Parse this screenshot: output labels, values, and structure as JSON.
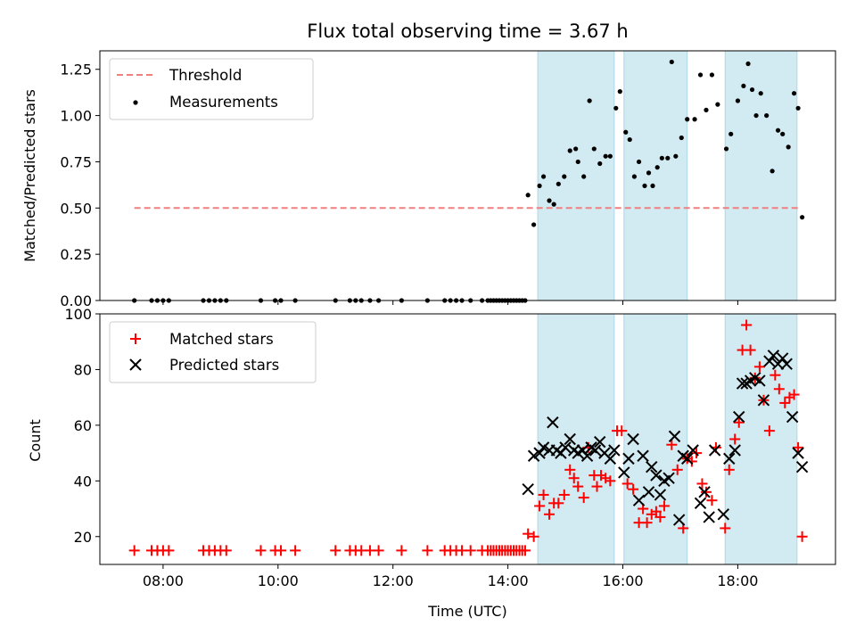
{
  "chart_data": [
    {
      "type": "scatter",
      "title": "Flux total observing time = 3.67 h",
      "xlabel": "",
      "ylabel": "Matched/Predicted stars",
      "xlim": [
        6.9,
        19.7
      ],
      "ylim": [
        0.0,
        1.35
      ],
      "yticks": [
        0.0,
        0.25,
        0.5,
        0.75,
        1.0,
        1.25
      ],
      "ytick_labels": [
        "0.00",
        "0.25",
        "0.50",
        "0.75",
        "1.00",
        "1.25"
      ],
      "xticks": [
        8,
        10,
        12,
        14,
        16,
        18
      ],
      "shaded_intervals": [
        [
          14.52,
          15.85
        ],
        [
          16.02,
          17.12
        ],
        [
          17.78,
          19.03
        ]
      ],
      "shade_color": "#add8e6",
      "threshold": {
        "name": "Threshold",
        "y": 0.5,
        "x_range": [
          7.5,
          19.05
        ],
        "color": "#f08080"
      },
      "legend": [
        {
          "label": "Threshold",
          "marker": "dashed-line",
          "color": "#f08080"
        },
        {
          "label": "Measurements",
          "marker": "dot",
          "color": "#000000"
        }
      ],
      "legend_position": "top-left",
      "series": [
        {
          "name": "Measurements",
          "color": "#000000",
          "points": [
            [
              7.5,
              0
            ],
            [
              7.8,
              0
            ],
            [
              7.9,
              0
            ],
            [
              8.0,
              0
            ],
            [
              8.1,
              0
            ],
            [
              8.7,
              0
            ],
            [
              8.8,
              0
            ],
            [
              8.9,
              0
            ],
            [
              9.0,
              0
            ],
            [
              9.1,
              0
            ],
            [
              9.7,
              0
            ],
            [
              9.95,
              0
            ],
            [
              10.05,
              0
            ],
            [
              10.3,
              0
            ],
            [
              11.0,
              0
            ],
            [
              11.25,
              0
            ],
            [
              11.35,
              0
            ],
            [
              11.45,
              0
            ],
            [
              11.6,
              0
            ],
            [
              11.75,
              0
            ],
            [
              12.15,
              0
            ],
            [
              12.6,
              0
            ],
            [
              12.9,
              0
            ],
            [
              13.0,
              0
            ],
            [
              13.1,
              0
            ],
            [
              13.2,
              0
            ],
            [
              13.35,
              0
            ],
            [
              13.55,
              0
            ],
            [
              13.65,
              0
            ],
            [
              13.7,
              0
            ],
            [
              13.75,
              0
            ],
            [
              13.8,
              0
            ],
            [
              13.85,
              0
            ],
            [
              13.9,
              0
            ],
            [
              13.95,
              0
            ],
            [
              14.0,
              0
            ],
            [
              14.05,
              0
            ],
            [
              14.1,
              0
            ],
            [
              14.15,
              0
            ],
            [
              14.2,
              0
            ],
            [
              14.25,
              0
            ],
            [
              14.3,
              0
            ],
            [
              14.35,
              0.57
            ],
            [
              14.45,
              0.41
            ],
            [
              14.55,
              0.62
            ],
            [
              14.62,
              0.67
            ],
            [
              14.72,
              0.54
            ],
            [
              14.8,
              0.52
            ],
            [
              14.88,
              0.63
            ],
            [
              14.98,
              0.67
            ],
            [
              15.08,
              0.81
            ],
            [
              15.18,
              0.82
            ],
            [
              15.22,
              0.75
            ],
            [
              15.32,
              0.67
            ],
            [
              15.42,
              1.08
            ],
            [
              15.5,
              0.82
            ],
            [
              15.6,
              0.74
            ],
            [
              15.7,
              0.78
            ],
            [
              15.78,
              0.78
            ],
            [
              15.88,
              1.04
            ],
            [
              15.95,
              1.13
            ],
            [
              16.05,
              0.91
            ],
            [
              16.12,
              0.87
            ],
            [
              16.2,
              0.67
            ],
            [
              16.28,
              0.75
            ],
            [
              16.38,
              0.62
            ],
            [
              16.45,
              0.69
            ],
            [
              16.52,
              0.62
            ],
            [
              16.6,
              0.72
            ],
            [
              16.68,
              0.77
            ],
            [
              16.78,
              0.77
            ],
            [
              16.85,
              1.29
            ],
            [
              16.92,
              0.78
            ],
            [
              17.02,
              0.88
            ],
            [
              17.12,
              0.98
            ],
            [
              17.25,
              0.98
            ],
            [
              17.35,
              1.22
            ],
            [
              17.45,
              1.03
            ],
            [
              17.55,
              1.22
            ],
            [
              17.65,
              1.06
            ],
            [
              17.8,
              0.82
            ],
            [
              17.88,
              0.9
            ],
            [
              18.0,
              1.08
            ],
            [
              18.1,
              1.16
            ],
            [
              18.18,
              1.28
            ],
            [
              18.25,
              1.14
            ],
            [
              18.32,
              1.0
            ],
            [
              18.4,
              1.12
            ],
            [
              18.5,
              1.0
            ],
            [
              18.6,
              0.7
            ],
            [
              18.7,
              0.92
            ],
            [
              18.78,
              0.9
            ],
            [
              18.88,
              0.83
            ],
            [
              18.98,
              1.12
            ],
            [
              19.05,
              1.04
            ],
            [
              19.12,
              0.45
            ]
          ]
        }
      ]
    },
    {
      "type": "scatter",
      "title": "",
      "xlabel": "Time (UTC)",
      "ylabel": "Count",
      "xlim": [
        6.9,
        19.7
      ],
      "ylim": [
        10,
        100
      ],
      "yticks": [
        20,
        40,
        60,
        80,
        100
      ],
      "ytick_labels": [
        "20",
        "40",
        "60",
        "80",
        "100"
      ],
      "xticks": [
        8,
        10,
        12,
        14,
        16,
        18
      ],
      "xtick_labels": [
        "08:00",
        "10:00",
        "12:00",
        "14:00",
        "16:00",
        "18:00"
      ],
      "shaded_intervals": [
        [
          14.52,
          15.85
        ],
        [
          16.02,
          17.12
        ],
        [
          17.78,
          19.03
        ]
      ],
      "shade_color": "#add8e6",
      "legend": [
        {
          "label": "Matched stars",
          "marker": "plus",
          "color": "#ff0000"
        },
        {
          "label": "Predicted stars",
          "marker": "x",
          "color": "#000000"
        }
      ],
      "legend_position": "top-left",
      "series": [
        {
          "name": "Matched stars",
          "marker": "plus",
          "color": "#ff0000",
          "points": [
            [
              7.5,
              15
            ],
            [
              7.8,
              15
            ],
            [
              7.9,
              15
            ],
            [
              8.0,
              15
            ],
            [
              8.1,
              15
            ],
            [
              8.7,
              15
            ],
            [
              8.8,
              15
            ],
            [
              8.9,
              15
            ],
            [
              9.0,
              15
            ],
            [
              9.1,
              15
            ],
            [
              9.7,
              15
            ],
            [
              9.95,
              15
            ],
            [
              10.05,
              15
            ],
            [
              10.3,
              15
            ],
            [
              11.0,
              15
            ],
            [
              11.25,
              15
            ],
            [
              11.35,
              15
            ],
            [
              11.45,
              15
            ],
            [
              11.6,
              15
            ],
            [
              11.75,
              15
            ],
            [
              12.15,
              15
            ],
            [
              12.6,
              15
            ],
            [
              12.9,
              15
            ],
            [
              13.0,
              15
            ],
            [
              13.1,
              15
            ],
            [
              13.2,
              15
            ],
            [
              13.35,
              15
            ],
            [
              13.55,
              15
            ],
            [
              13.65,
              15
            ],
            [
              13.7,
              15
            ],
            [
              13.75,
              15
            ],
            [
              13.8,
              15
            ],
            [
              13.85,
              15
            ],
            [
              13.9,
              15
            ],
            [
              13.95,
              15
            ],
            [
              14.0,
              15
            ],
            [
              14.05,
              15
            ],
            [
              14.1,
              15
            ],
            [
              14.15,
              15
            ],
            [
              14.2,
              15
            ],
            [
              14.25,
              15
            ],
            [
              14.3,
              15
            ],
            [
              14.35,
              21
            ],
            [
              14.45,
              20
            ],
            [
              14.55,
              31
            ],
            [
              14.62,
              35
            ],
            [
              14.72,
              28
            ],
            [
              14.8,
              32
            ],
            [
              14.88,
              32
            ],
            [
              14.98,
              35
            ],
            [
              15.08,
              44
            ],
            [
              15.15,
              41
            ],
            [
              15.22,
              38
            ],
            [
              15.32,
              34
            ],
            [
              15.4,
              52
            ],
            [
              15.5,
              42
            ],
            [
              15.55,
              38
            ],
            [
              15.62,
              42
            ],
            [
              15.7,
              41
            ],
            [
              15.78,
              40
            ],
            [
              15.9,
              58
            ],
            [
              15.98,
              58
            ],
            [
              16.08,
              39
            ],
            [
              16.18,
              37
            ],
            [
              16.28,
              25
            ],
            [
              16.35,
              30
            ],
            [
              16.42,
              25
            ],
            [
              16.5,
              28
            ],
            [
              16.58,
              29
            ],
            [
              16.65,
              27
            ],
            [
              16.72,
              31
            ],
            [
              16.85,
              53
            ],
            [
              16.95,
              44
            ],
            [
              17.05,
              23
            ],
            [
              17.12,
              48
            ],
            [
              17.2,
              47
            ],
            [
              17.28,
              50
            ],
            [
              17.38,
              39
            ],
            [
              17.45,
              36
            ],
            [
              17.55,
              33
            ],
            [
              17.62,
              52
            ],
            [
              17.78,
              23
            ],
            [
              17.85,
              44
            ],
            [
              17.95,
              55
            ],
            [
              18.02,
              61
            ],
            [
              18.08,
              87
            ],
            [
              18.15,
              96
            ],
            [
              18.22,
              87
            ],
            [
              18.3,
              77
            ],
            [
              18.38,
              81
            ],
            [
              18.45,
              69
            ],
            [
              18.55,
              58
            ],
            [
              18.65,
              78
            ],
            [
              18.72,
              73
            ],
            [
              18.82,
              68
            ],
            [
              18.9,
              70
            ],
            [
              18.98,
              71
            ],
            [
              19.05,
              52
            ],
            [
              19.12,
              20
            ]
          ]
        },
        {
          "name": "Predicted stars",
          "marker": "x",
          "color": "#000000",
          "points": [
            [
              14.35,
              37
            ],
            [
              14.45,
              49
            ],
            [
              14.55,
              50
            ],
            [
              14.62,
              52
            ],
            [
              14.72,
              51
            ],
            [
              14.78,
              61
            ],
            [
              14.85,
              51
            ],
            [
              14.92,
              50
            ],
            [
              15.0,
              52
            ],
            [
              15.08,
              55
            ],
            [
              15.15,
              51
            ],
            [
              15.22,
              50
            ],
            [
              15.3,
              51
            ],
            [
              15.38,
              49
            ],
            [
              15.45,
              52
            ],
            [
              15.52,
              51
            ],
            [
              15.6,
              54
            ],
            [
              15.68,
              50
            ],
            [
              15.78,
              48
            ],
            [
              15.85,
              51
            ],
            [
              16.02,
              43
            ],
            [
              16.1,
              48
            ],
            [
              16.18,
              55
            ],
            [
              16.28,
              33
            ],
            [
              16.35,
              49
            ],
            [
              16.45,
              36
            ],
            [
              16.5,
              45
            ],
            [
              16.58,
              42
            ],
            [
              16.65,
              35
            ],
            [
              16.72,
              40
            ],
            [
              16.8,
              41
            ],
            [
              16.9,
              56
            ],
            [
              16.98,
              26
            ],
            [
              17.05,
              49
            ],
            [
              17.12,
              48
            ],
            [
              17.22,
              51
            ],
            [
              17.35,
              32
            ],
            [
              17.42,
              36
            ],
            [
              17.5,
              27
            ],
            [
              17.6,
              51
            ],
            [
              17.75,
              28
            ],
            [
              17.85,
              48
            ],
            [
              17.95,
              51
            ],
            [
              18.02,
              63
            ],
            [
              18.08,
              75
            ],
            [
              18.15,
              75
            ],
            [
              18.22,
              76
            ],
            [
              18.3,
              77
            ],
            [
              18.38,
              76
            ],
            [
              18.45,
              69
            ],
            [
              18.55,
              83
            ],
            [
              18.62,
              85
            ],
            [
              18.7,
              82
            ],
            [
              18.78,
              84
            ],
            [
              18.85,
              82
            ],
            [
              18.95,
              63
            ],
            [
              19.05,
              50
            ],
            [
              19.12,
              45
            ]
          ]
        }
      ]
    }
  ]
}
